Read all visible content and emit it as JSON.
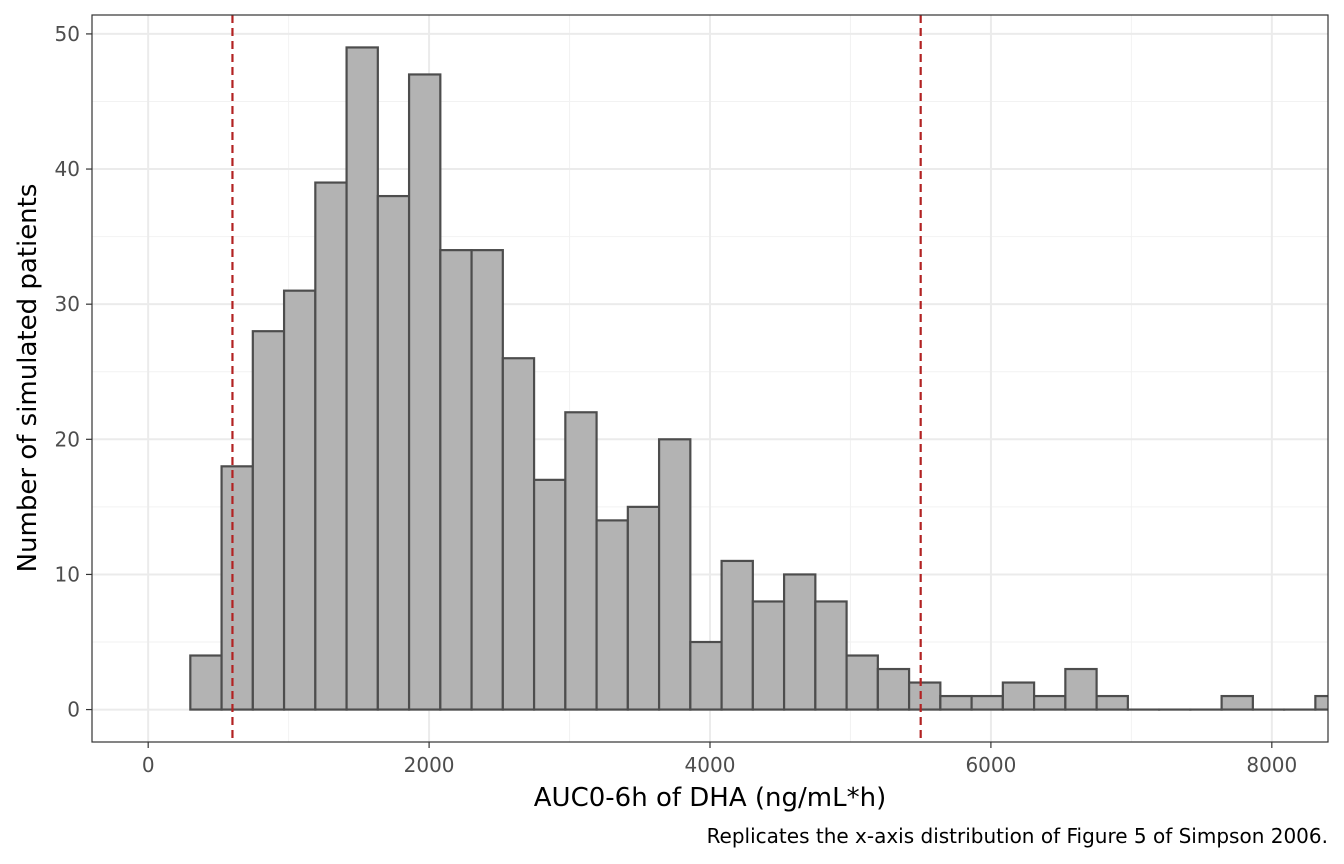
{
  "chart_data": {
    "type": "bar",
    "subtype": "histogram",
    "title": "",
    "xlabel": "AUC0-6h of DHA (ng/mL*h)",
    "ylabel": "Number of simulated patients",
    "caption": "Replicates the x-axis distribution of Figure 5 of Simpson 2006.",
    "xlim": [
      -400,
      8400
    ],
    "ylim": [
      -2.4,
      51.4
    ],
    "xticks": [
      0,
      2000,
      4000,
      6000,
      8000
    ],
    "xtick_labels": [
      "0",
      "2000",
      "4000",
      "6000",
      "8000"
    ],
    "yticks": [
      0,
      10,
      20,
      30,
      40,
      50
    ],
    "ytick_labels": [
      "0",
      "10",
      "20",
      "30",
      "40",
      "50"
    ],
    "bin_width": 222.5,
    "bin_start": 300,
    "counts": [
      4,
      18,
      28,
      31,
      39,
      49,
      38,
      47,
      34,
      34,
      26,
      17,
      22,
      14,
      15,
      20,
      5,
      11,
      8,
      10,
      8,
      4,
      3,
      2,
      1,
      1,
      2,
      1,
      3,
      1,
      0,
      0,
      0,
      1,
      0,
      0,
      1
    ],
    "reference_lines": [
      {
        "axis": "x",
        "value": 600,
        "style": "dashed",
        "color": "#b22222"
      },
      {
        "axis": "x",
        "value": 5500,
        "style": "dashed",
        "color": "#b22222"
      }
    ],
    "bar_fill": "#b3b3b3",
    "bar_stroke": "#4d4d4d",
    "grid": true,
    "legend": "none"
  }
}
